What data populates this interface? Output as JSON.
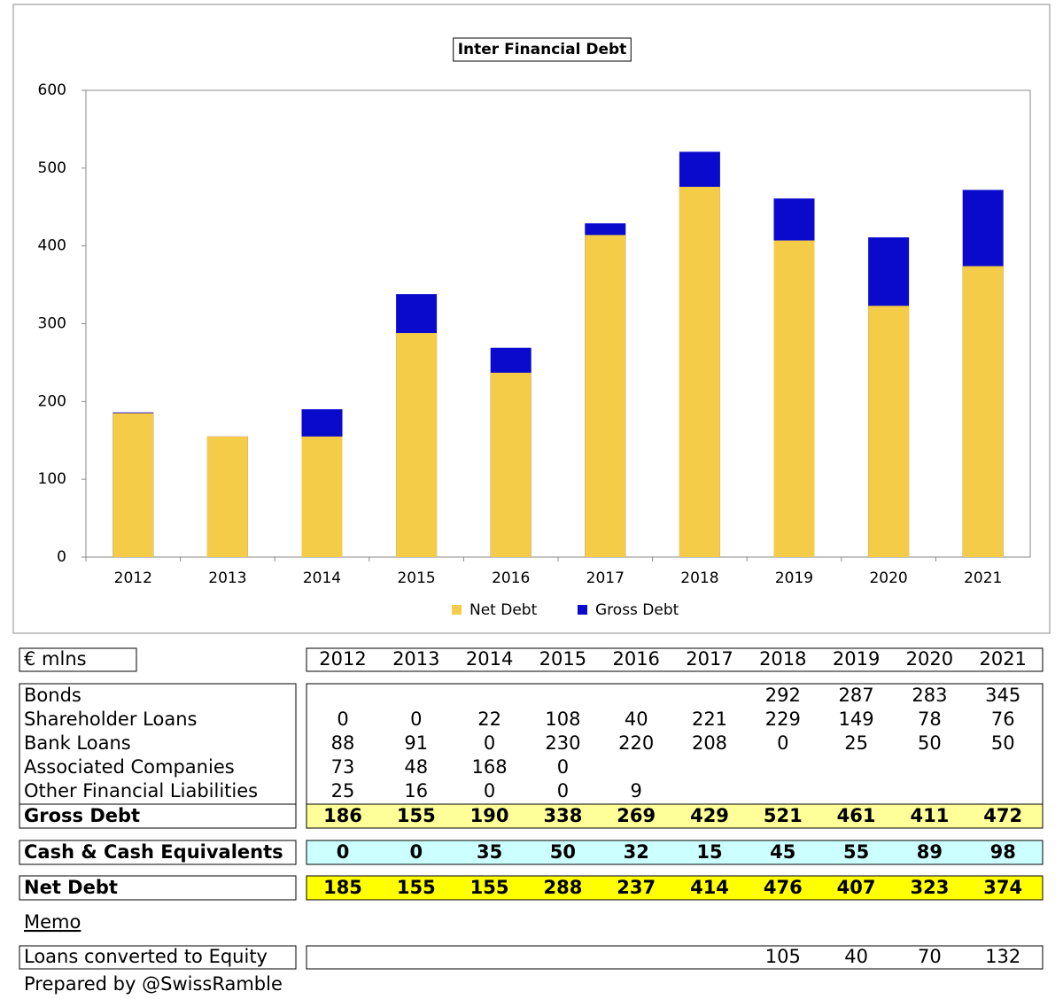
{
  "chart_data": {
    "type": "bar",
    "title": "Inter Financial Debt",
    "categories": [
      "2012",
      "2013",
      "2014",
      "2015",
      "2016",
      "2017",
      "2018",
      "2019",
      "2020",
      "2021"
    ],
    "series": [
      {
        "name": "Net Debt",
        "color": "#f4cc47",
        "values": [
          185,
          155,
          155,
          288,
          237,
          414,
          476,
          407,
          323,
          374
        ]
      },
      {
        "name": "Gross Debt",
        "color": "#0a0acc",
        "values": [
          186,
          155,
          190,
          338,
          269,
          429,
          521,
          461,
          411,
          472
        ]
      }
    ],
    "ylim": [
      0,
      600
    ],
    "yticks": [
      0,
      100,
      200,
      300,
      400,
      500,
      600
    ],
    "grid": false,
    "legend": "bottom"
  },
  "table": {
    "unit": "€ mlns",
    "columns": [
      "2012",
      "2013",
      "2014",
      "2015",
      "2016",
      "2017",
      "2018",
      "2019",
      "2020",
      "2021"
    ],
    "rows": [
      {
        "label": "Bonds",
        "values": [
          null,
          null,
          null,
          null,
          null,
          null,
          292,
          287,
          283,
          345
        ]
      },
      {
        "label": "Shareholder Loans",
        "values": [
          0,
          0,
          22,
          108,
          40,
          221,
          229,
          149,
          78,
          76
        ]
      },
      {
        "label": "Bank Loans",
        "values": [
          88,
          91,
          0,
          230,
          220,
          208,
          0,
          25,
          50,
          50
        ]
      },
      {
        "label": "Associated Companies",
        "values": [
          73,
          48,
          168,
          0,
          null,
          null,
          null,
          null,
          null,
          null
        ]
      },
      {
        "label": "Other Financial Liabilities",
        "values": [
          25,
          16,
          0,
          0,
          9,
          null,
          null,
          null,
          null,
          null
        ]
      },
      {
        "label": "Gross Debt",
        "values": [
          186,
          155,
          190,
          338,
          269,
          429,
          521,
          461,
          411,
          472
        ]
      },
      {
        "label": "Cash & Cash Equivalents",
        "values": [
          0,
          0,
          35,
          50,
          32,
          15,
          45,
          55,
          89,
          98
        ]
      },
      {
        "label": "Net Debt",
        "values": [
          185,
          155,
          155,
          288,
          237,
          414,
          476,
          407,
          323,
          374
        ]
      }
    ],
    "memo": "Memo",
    "memo_rows": [
      {
        "label": "Loans converted to Equity",
        "values": [
          null,
          null,
          null,
          null,
          null,
          null,
          105,
          40,
          70,
          132
        ]
      }
    ]
  },
  "footer": "Prepared by @SwissRamble"
}
